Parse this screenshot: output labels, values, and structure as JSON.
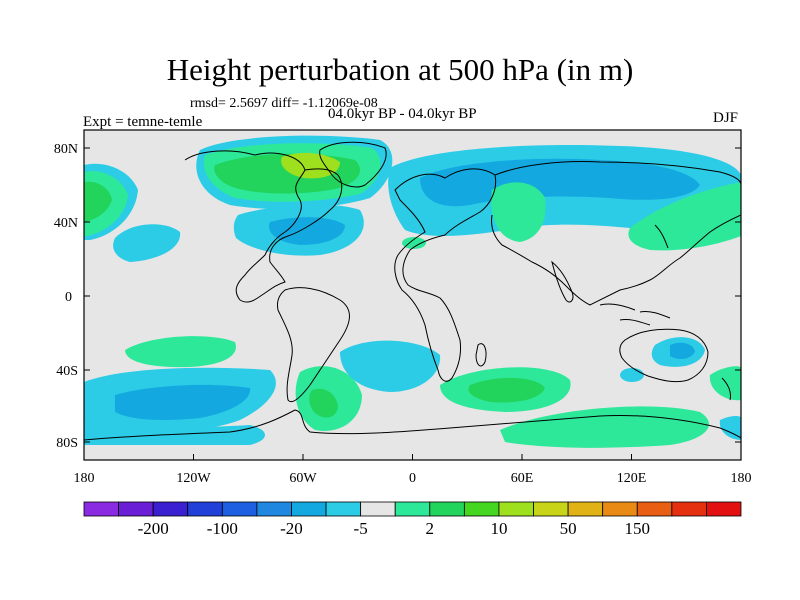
{
  "title": "Height perturbation at 500 hPa (in m)",
  "stats": "rmsd= 2.5697 diff= -1.12069e-08",
  "period": "04.0kyr BP - 04.0kyr BP",
  "experiment": "Expt = temne-temle",
  "season": "DJF",
  "lat_labels": [
    "80N",
    "40N",
    "0",
    "40S",
    "80S"
  ],
  "lon_labels": [
    "180",
    "120W",
    "60W",
    "0",
    "60E",
    "120E",
    "180"
  ],
  "colorbar": {
    "labels": [
      "-200",
      "-100",
      "-20",
      "-5",
      "2",
      "10",
      "50",
      "150"
    ],
    "colors": [
      "#8a2be2",
      "#6a1fd6",
      "#3a20d0",
      "#2040d8",
      "#1d5fe0",
      "#1f87e0",
      "#13a9e0",
      "#2ccce6",
      "#e6e6e6",
      "#2ee89a",
      "#22d45c",
      "#44d620",
      "#9ee01e",
      "#c8d418",
      "#e0b216",
      "#e88a14",
      "#e85e12",
      "#e53010",
      "#e21010"
    ]
  },
  "map": {
    "background": "#e6e6e6",
    "colors": {
      "light_blue": "#2ccce6",
      "blue": "#13a9e0",
      "dark_blue": "#1f87e0",
      "green": "#2ee89a",
      "mid_green": "#22d45c",
      "yellow_green": "#9ee01e"
    }
  }
}
